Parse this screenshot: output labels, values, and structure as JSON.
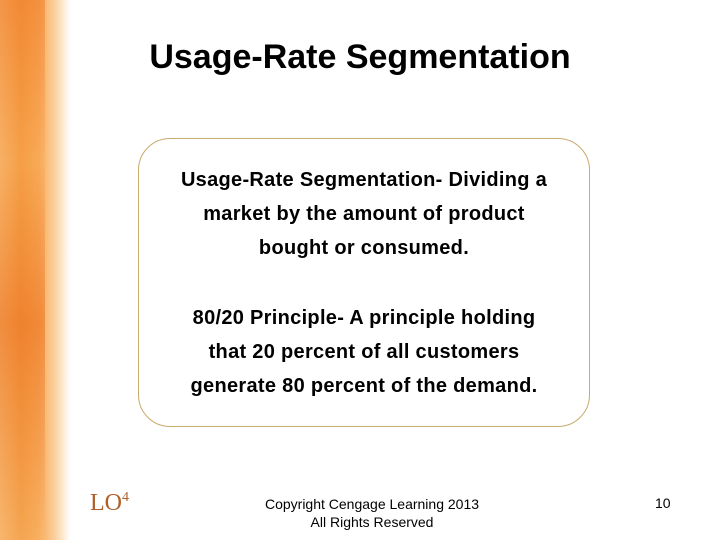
{
  "title": "Usage-Rate Segmentation",
  "box": {
    "paragraphs": [
      {
        "lines": [
          "Usage-Rate Segmentation- Dividing a",
          "market by the amount of product",
          "bought or consumed."
        ]
      },
      {
        "lines": [
          "80/20 Principle- A principle holding",
          "that 20 percent of all customers",
          "generate 80 percent of the demand."
        ]
      }
    ]
  },
  "footer": {
    "lo": {
      "text": "LO",
      "superscript": "4"
    },
    "copyright": [
      "Copyright Cengage Learning 2013",
      "All Rights Reserved"
    ],
    "page_number": "10"
  }
}
